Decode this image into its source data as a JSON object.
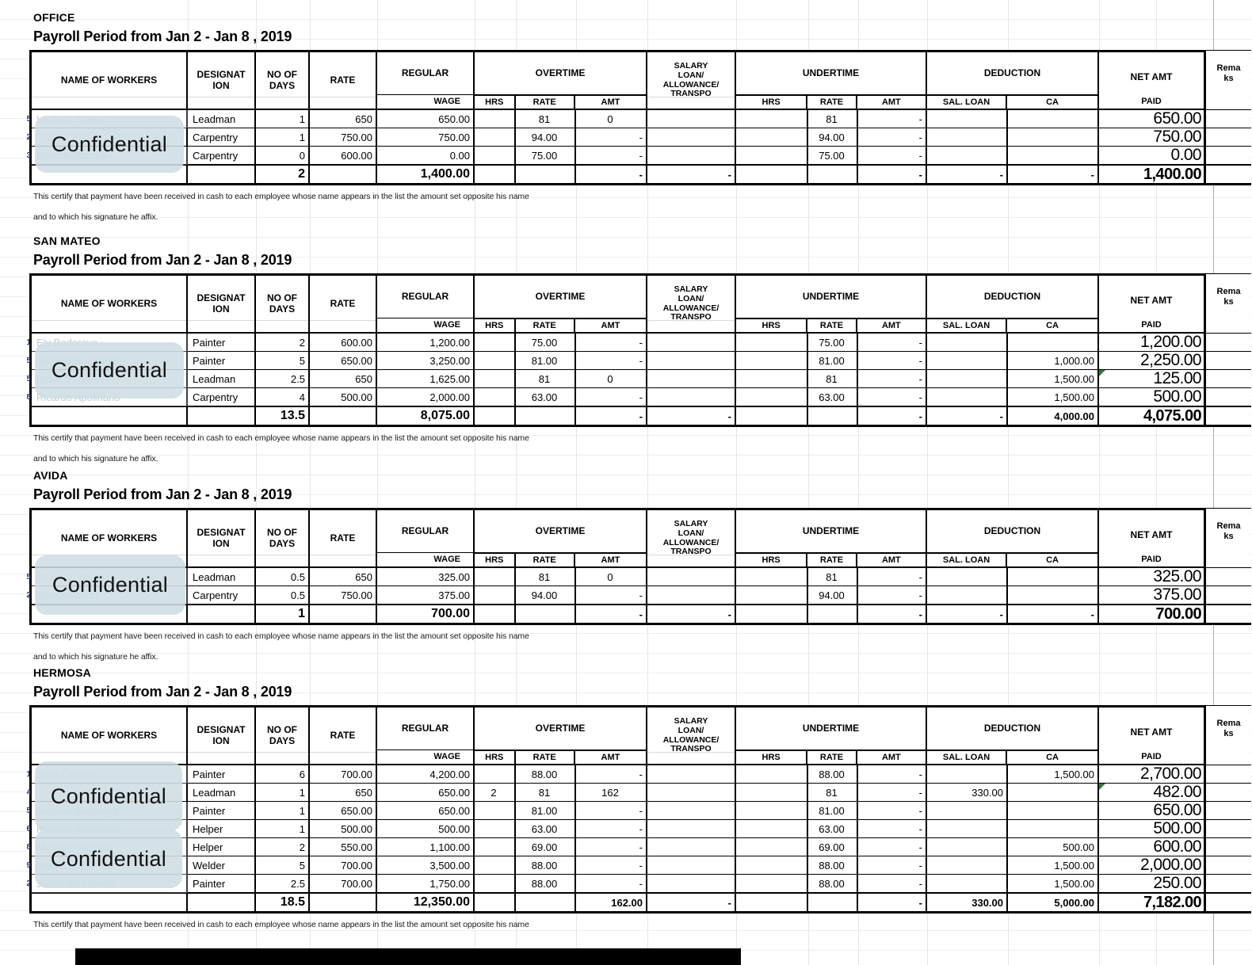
{
  "labels": {
    "confidential": "Confidential",
    "cert_line1": "This certify that payment have been received in cash to each employee whose name appears in the list the amount set opposite his name",
    "cert_line2": "and to which his signature he affix."
  },
  "columns": {
    "name": "NAME OF WORKERS",
    "designation": "DESIGNAT\nION",
    "days": "NO OF\nDAYS",
    "rate": "RATE",
    "regular": "REGULAR",
    "wage": "WAGE",
    "overtime": "OVERTIME",
    "salary": "SALARY\nLOAN/\nALLOWANCE/\nTRANSPO",
    "undertime": "UNDERTIME",
    "hrs": "HRS",
    "rate_sub": "RATE",
    "amt": "AMT",
    "deduction": "DEDUCTION",
    "sal_loan": "SAL. LOAN",
    "ca": "CA",
    "net_amt": "NET AMT",
    "paid": "PAID",
    "remarks": "Rema\nks"
  },
  "tables": [
    {
      "site": "OFFICE",
      "period": "Payroll Period from Jan 2  - Jan 8 , 2019",
      "rows": [
        {
          "num": "5",
          "name": "Louie D. Sarco",
          "designation": "Leadman",
          "days": "1",
          "rate": "650",
          "wage": "650.00",
          "ot_hrs": "",
          "ot_rate": "81",
          "ot_amt": "0",
          "salary": "",
          "ut_hrs": "",
          "ut_rate": "81",
          "ut_amt": "-",
          "sal_loan": "",
          "ca": "",
          "net": "650.00",
          "remarks": ""
        },
        {
          "num": "2",
          "name": "",
          "designation": "Carpentry",
          "days": "1",
          "rate": "750.00",
          "wage": "750.00",
          "ot_hrs": "",
          "ot_rate": "94.00",
          "ot_amt": "-",
          "salary": "",
          "ut_hrs": "",
          "ut_rate": "94.00",
          "ut_amt": "-",
          "sal_loan": "",
          "ca": "",
          "net": "750.00",
          "remarks": ""
        },
        {
          "num": "3",
          "name": "Romulo Bayani",
          "designation": "Carpentry",
          "days": "0",
          "rate": "600.00",
          "wage": "0.00",
          "ot_hrs": "",
          "ot_rate": "75.00",
          "ot_amt": "-",
          "salary": "",
          "ut_hrs": "",
          "ut_rate": "75.00",
          "ut_amt": "-",
          "sal_loan": "",
          "ca": "",
          "net": "0.00",
          "remarks": ""
        }
      ],
      "total": {
        "days": "2",
        "wage": "1,400.00",
        "ot_amt": "-",
        "salary": "-",
        "ut_amt": "-",
        "sal_loan": "-",
        "ca": "-",
        "net": "1,400.00"
      }
    },
    {
      "site": "SAN MATEO",
      "period": "Payroll Period from Jan 2  - Jan 8 , 2019",
      "rows": [
        {
          "num": "1",
          "name": "Ely Bodoraya",
          "designation": "Painter",
          "days": "2",
          "rate": "600.00",
          "wage": "1,200.00",
          "ot_hrs": "",
          "ot_rate": "75.00",
          "ot_amt": "-",
          "salary": "",
          "ut_hrs": "",
          "ut_rate": "75.00",
          "ut_amt": "-",
          "sal_loan": "",
          "ca": "",
          "net": "1,200.00",
          "remarks": ""
        },
        {
          "num": "5",
          "name": "Antonio Bodoraya",
          "designation": "Painter",
          "days": "5",
          "rate": "650.00",
          "wage": "3,250.00",
          "ot_hrs": "",
          "ot_rate": "81.00",
          "ot_amt": "-",
          "salary": "",
          "ut_hrs": "",
          "ut_rate": "81.00",
          "ut_amt": "-",
          "sal_loan": "",
          "ca": "1,000.00",
          "net": "2,250.00",
          "remarks": ""
        },
        {
          "num": "5",
          "name": "Louie D. Sarco",
          "designation": "Leadman",
          "days": "2.5",
          "rate": "650",
          "wage": "1,625.00",
          "ot_hrs": "",
          "ot_rate": "81",
          "ot_amt": "0",
          "salary": "",
          "ut_hrs": "",
          "ut_rate": "81",
          "ut_amt": "-",
          "sal_loan": "",
          "ca": "1,500.00",
          "net": "125.00",
          "flag": true,
          "remarks": ""
        },
        {
          "num": "8",
          "name": "Ricardo Apolinario",
          "designation": "Carpentry",
          "days": "4",
          "rate": "500.00",
          "wage": "2,000.00",
          "ot_hrs": "",
          "ot_rate": "63.00",
          "ot_amt": "-",
          "salary": "",
          "ut_hrs": "",
          "ut_rate": "63.00",
          "ut_amt": "-",
          "sal_loan": "",
          "ca": "1,500.00",
          "net": "500.00",
          "remarks": ""
        }
      ],
      "total": {
        "days": "13.5",
        "wage": "8,075.00",
        "ot_amt": "-",
        "salary": "-",
        "ut_amt": "-",
        "sal_loan": "-",
        "ca": "4,000.00",
        "net": "4,075.00"
      }
    },
    {
      "site": "AVIDA",
      "period": "Payroll Period from Jan 2  - Jan 8 , 2019",
      "rows": [
        {
          "num": "5",
          "name": "Louie D. Sarco",
          "designation": "Leadman",
          "days": "0.5",
          "rate": "650",
          "wage": "325.00",
          "ot_hrs": "",
          "ot_rate": "81",
          "ot_amt": "0",
          "salary": "",
          "ut_hrs": "",
          "ut_rate": "81",
          "ut_amt": "-",
          "sal_loan": "",
          "ca": "",
          "net": "325.00",
          "remarks": ""
        },
        {
          "num": "2",
          "name": "Genese Mino",
          "designation": "Carpentry",
          "days": "0.5",
          "rate": "750.00",
          "wage": "375.00",
          "ot_hrs": "",
          "ot_rate": "94.00",
          "ot_amt": "-",
          "salary": "",
          "ut_hrs": "",
          "ut_rate": "94.00",
          "ut_amt": "-",
          "sal_loan": "",
          "ca": "",
          "net": "375.00",
          "remarks": ""
        }
      ],
      "total": {
        "days": "1",
        "wage": "700.00",
        "ot_amt": "-",
        "salary": "-",
        "ut_amt": "-",
        "sal_loan": "-",
        "ca": "-",
        "net": "700.00"
      }
    },
    {
      "site": "HERMOSA",
      "period": "Payroll Period from Jan 2  - Jan 8 , 2019",
      "rows": [
        {
          "num": "1",
          "name": "Jose Climaco",
          "designation": "Painter",
          "days": "6",
          "rate": "700.00",
          "wage": "4,200.00",
          "ot_hrs": "",
          "ot_rate": "88.00",
          "ot_amt": "-",
          "salary": "",
          "ut_hrs": "",
          "ut_rate": "88.00",
          "ut_amt": "-",
          "sal_loan": "",
          "ca": "1,500.00",
          "net": "2,700.00",
          "remarks": ""
        },
        {
          "num": "4",
          "name": "",
          "designation": "Leadman",
          "days": "1",
          "rate": "650",
          "wage": "650.00",
          "ot_hrs": "2",
          "ot_rate": "81",
          "ot_amt": "162",
          "salary": "",
          "ut_hrs": "",
          "ut_rate": "81",
          "ut_amt": "-",
          "sal_loan": "330.00",
          "ca": "",
          "net": "482.00",
          "flag": true,
          "remarks": ""
        },
        {
          "num": "5",
          "name": "Antonio Bodoraya",
          "designation": "Painter",
          "days": "1",
          "rate": "650.00",
          "wage": "650.00",
          "ot_hrs": "",
          "ot_rate": "81.00",
          "ot_amt": "-",
          "salary": "",
          "ut_hrs": "",
          "ut_rate": "81.00",
          "ut_amt": "-",
          "sal_loan": "",
          "ca": "",
          "net": "650.00",
          "remarks": ""
        },
        {
          "num": "6",
          "name": "Ricardo Apolinario",
          "designation": "Helper",
          "days": "1",
          "rate": "500.00",
          "wage": "500.00",
          "ot_hrs": "",
          "ot_rate": "63.00",
          "ot_amt": "-",
          "salary": "",
          "ut_hrs": "",
          "ut_rate": "63.00",
          "ut_amt": "-",
          "sal_loan": "",
          "ca": "",
          "net": "500.00",
          "remarks": ""
        },
        {
          "num": "8",
          "name": "Michael Valencia",
          "designation": "Helper",
          "days": "2",
          "rate": "550.00",
          "wage": "1,100.00",
          "ot_hrs": "",
          "ot_rate": "69.00",
          "ot_amt": "-",
          "salary": "",
          "ut_hrs": "",
          "ut_rate": "69.00",
          "ut_amt": "-",
          "sal_loan": "",
          "ca": "500.00",
          "net": "600.00",
          "remarks": ""
        },
        {
          "num": "9",
          "name": "Raul Estrella",
          "designation": "Welder",
          "days": "5",
          "rate": "700.00",
          "wage": "3,500.00",
          "ot_hrs": "",
          "ot_rate": "88.00",
          "ot_amt": "-",
          "salary": "",
          "ut_hrs": "",
          "ut_rate": "88.00",
          "ut_amt": "-",
          "sal_loan": "",
          "ca": "1,500.00",
          "net": "2,000.00",
          "remarks": ""
        },
        {
          "num": "2",
          "name": "Jonathan Llaneta",
          "designation": "Painter",
          "days": "2.5",
          "rate": "700.00",
          "wage": "1,750.00",
          "ot_hrs": "",
          "ot_rate": "88.00",
          "ot_amt": "-",
          "salary": "",
          "ut_hrs": "",
          "ut_rate": "88.00",
          "ut_amt": "-",
          "sal_loan": "",
          "ca": "1,500.00",
          "net": "250.00",
          "remarks": ""
        }
      ],
      "total": {
        "days": "18.5",
        "wage": "12,350.00",
        "ot_amt": "162.00",
        "salary": "-",
        "ut_amt": "-",
        "sal_loan": "330.00",
        "ca": "5,000.00",
        "net": "7,182.00"
      }
    }
  ]
}
